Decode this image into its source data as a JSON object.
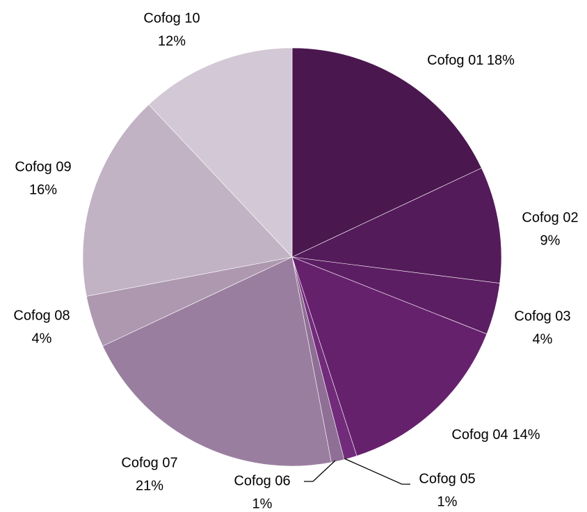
{
  "chart_data": {
    "type": "pie",
    "categories": [
      "Cofog 01",
      "Cofog 02",
      "Cofog 03",
      "Cofog 04",
      "Cofog 05",
      "Cofog 06",
      "Cofog 07",
      "Cofog 08",
      "Cofog 09",
      "Cofog 10"
    ],
    "values": [
      18,
      9,
      4,
      14,
      1,
      1,
      21,
      4,
      16,
      12
    ],
    "value_labels": [
      "18%",
      "9%",
      "4%",
      "14%",
      "1%",
      "1%",
      "21%",
      "4%",
      "16%",
      "12%"
    ],
    "colors": [
      "#4a174f",
      "#541b5a",
      "#5c1e63",
      "#66216d",
      "#722b7b",
      "#8f6f95",
      "#9a7e9f",
      "#ad98b0",
      "#c1b2c4",
      "#d3c8d6"
    ]
  }
}
